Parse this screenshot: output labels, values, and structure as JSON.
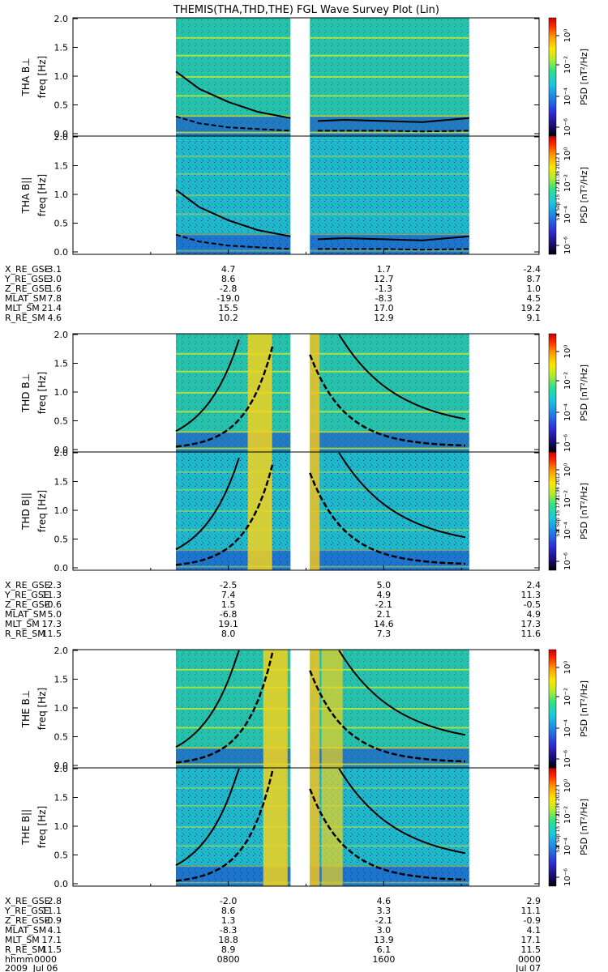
{
  "title": "THEMIS(THA,THD,THE) FGL Wave Survey Plot (Lin)",
  "colorbar": {
    "label": "PSD [nT²/Hz]",
    "ticks": [
      "10⁰",
      "10⁻²",
      "10⁻⁴",
      "10⁻⁶"
    ],
    "colors": [
      "#000000",
      "#1a0a6e",
      "#2f2fd6",
      "#1f7fe6",
      "#19c8e0",
      "#2ee08a",
      "#b6ec2a",
      "#ffe600",
      "#ff9a00",
      "#ff2a00",
      "#c80000"
    ]
  },
  "stamp": "Sat Sep 15 17:21:36 2012",
  "chart_data": {
    "type": "heatmap",
    "x_ticks": [
      "0000",
      "0800",
      "1600",
      "0000"
    ],
    "x_axis_label": "hhmm",
    "date_labels": [
      "2009",
      "Jul 06",
      "Jul 07"
    ],
    "y_ticks": [
      "0.0",
      "0.5",
      "1.0",
      "1.5",
      "2.0"
    ],
    "ylim": [
      0,
      2
    ],
    "data_gaps": [
      [
        "0000",
        "~0520"
      ],
      [
        "~1130",
        "~1240"
      ],
      [
        "~2030",
        "0000"
      ]
    ],
    "probes": [
      {
        "name": "THA",
        "panels": [
          {
            "ylabel": "THA B⊥",
            "axis": "freq [Hz]"
          },
          {
            "ylabel": "THA B||",
            "axis": "freq [Hz]"
          }
        ],
        "curve_x_hours": [
          5.3,
          6.5,
          8.0,
          9.5,
          11.2,
          12.6,
          14.0,
          16.0,
          18.0,
          20.4
        ],
        "solid": [
          1.08,
          0.78,
          0.55,
          0.38,
          0.27,
          0.22,
          0.24,
          0.22,
          0.2,
          0.27
        ],
        "dashed": [
          0.3,
          0.18,
          0.11,
          0.08,
          0.05,
          0.05,
          0.05,
          0.05,
          0.04,
          0.05
        ],
        "table": {
          "labels": [
            "X_RE_GSE",
            "Y_RE_GSE",
            "Z_RE_GSE",
            "MLAT_SM",
            "MLT_SM",
            "R_RE_SM"
          ],
          "values": [
            [
              "-3.1",
              "4.7",
              "1.7",
              "-2.4"
            ],
            [
              "3.0",
              "8.6",
              "12.7",
              "8.7"
            ],
            [
              "1.6",
              "-2.8",
              "-1.3",
              "1.0"
            ],
            [
              "7.8",
              "-19.0",
              "-8.3",
              "4.5"
            ],
            [
              "21.4",
              "15.5",
              "17.0",
              "19.2"
            ],
            [
              "4.6",
              "10.2",
              "12.9",
              "9.1"
            ]
          ]
        }
      },
      {
        "name": "THD",
        "panels": [
          {
            "ylabel": "THD B⊥",
            "axis": "freq [Hz]"
          },
          {
            "ylabel": "THD B||",
            "axis": "freq [Hz]"
          }
        ],
        "table": {
          "labels": [
            "X_RE_GSE",
            "Y_RE_GSE",
            "Z_RE_GSE",
            "MLAT_SM",
            "MLT_SM",
            "R_RE_SM"
          ],
          "values": [
            [
              "2.3",
              "-2.5",
              "5.0",
              "2.4"
            ],
            [
              "11.3",
              "7.4",
              "4.9",
              "11.3"
            ],
            [
              "-0.6",
              "1.5",
              "-2.1",
              "-0.5"
            ],
            [
              "5.0",
              "-6.8",
              "2.1",
              "4.9"
            ],
            [
              "17.3",
              "19.1",
              "14.6",
              "17.3"
            ],
            [
              "11.5",
              "8.0",
              "7.3",
              "11.6"
            ]
          ]
        }
      },
      {
        "name": "THE",
        "panels": [
          {
            "ylabel": "THE B⊥",
            "axis": "freq [Hz]"
          },
          {
            "ylabel": "THE B||",
            "axis": "freq [Hz]"
          }
        ],
        "table": {
          "labels": [
            "X_RE_GSE",
            "Y_RE_GSE",
            "Z_RE_GSE",
            "MLAT_SM",
            "MLT_SM",
            "R_RE_SM"
          ],
          "values": [
            [
              "2.8",
              "-2.0",
              "4.6",
              "2.9"
            ],
            [
              "11.1",
              "8.6",
              "3.3",
              "11.1"
            ],
            [
              "-0.9",
              "1.3",
              "-2.1",
              "-0.9"
            ],
            [
              "4.1",
              "-8.3",
              "3.0",
              "4.1"
            ],
            [
              "17.1",
              "18.8",
              "13.9",
              "17.1"
            ],
            [
              "11.5",
              "8.9",
              "6.1",
              "11.5"
            ]
          ]
        }
      }
    ]
  }
}
